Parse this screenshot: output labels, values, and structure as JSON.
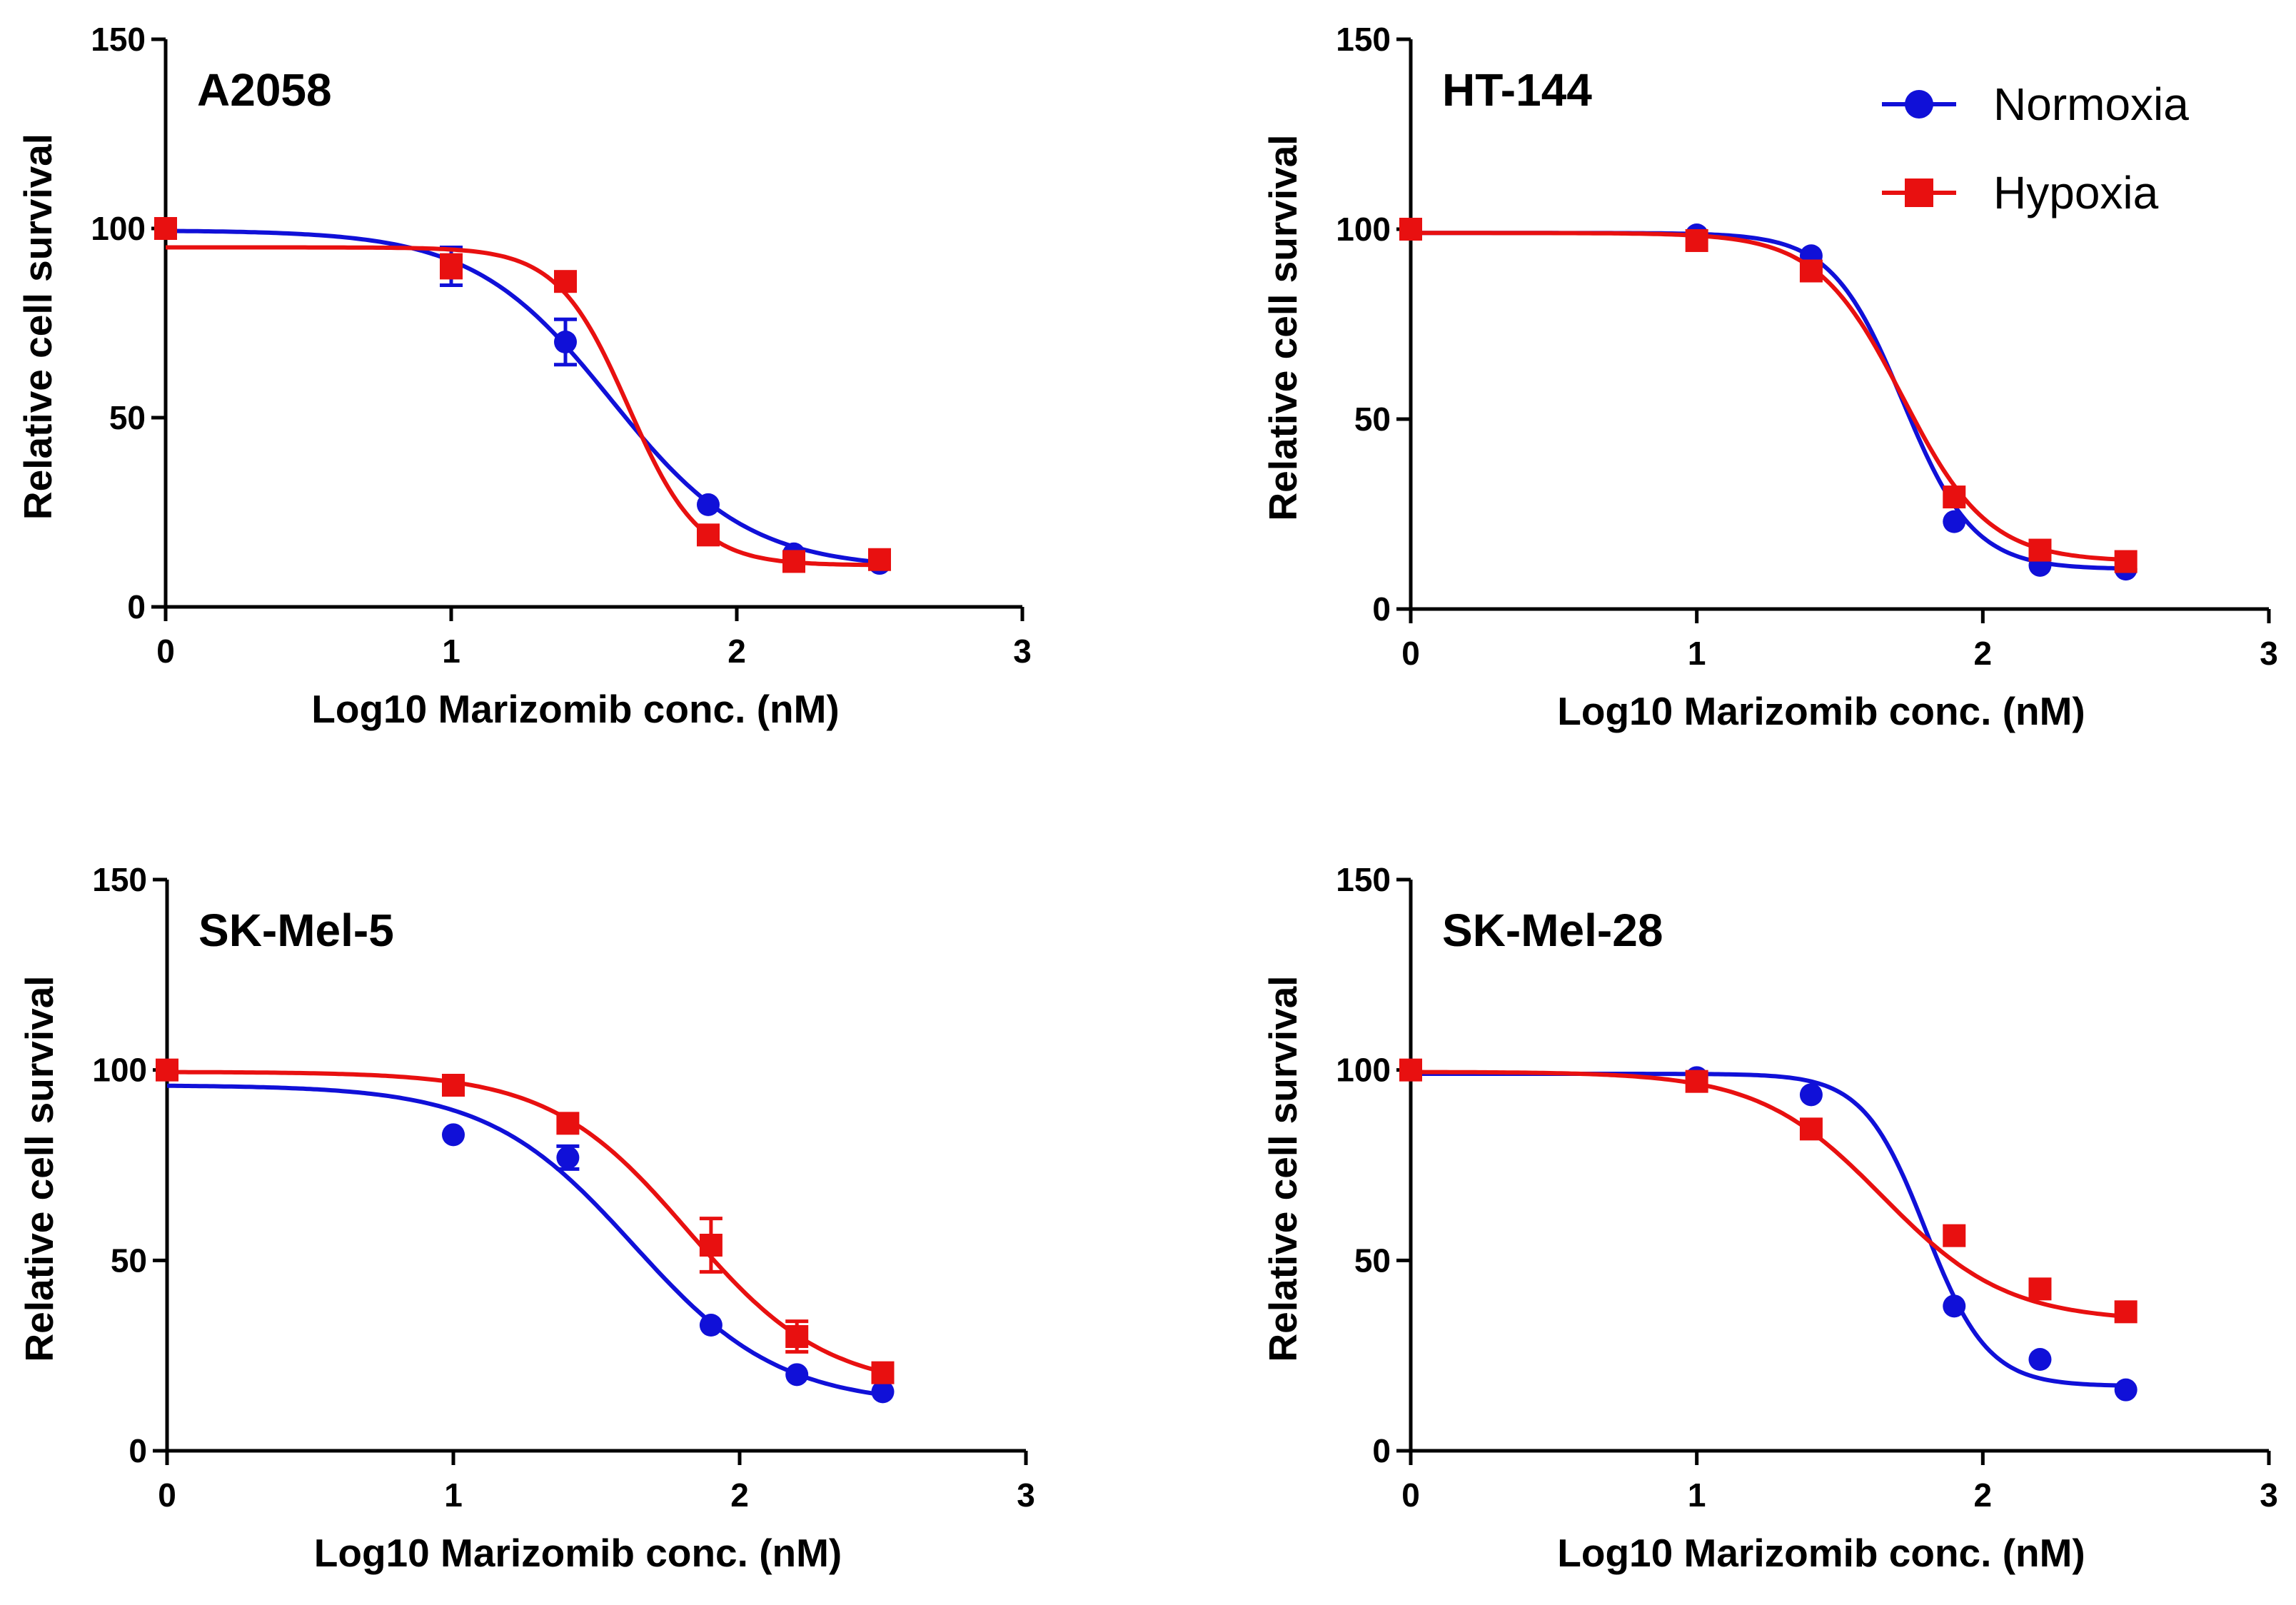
{
  "colors": {
    "normoxia": "#1010d8",
    "hypoxia": "#e81010"
  },
  "legend": {
    "entries": [
      {
        "label": "Normoxia",
        "color": "#1010d8",
        "marker": "circle"
      },
      {
        "label": "Hypoxia",
        "color": "#e81010",
        "marker": "square"
      }
    ],
    "placement": "top-right of HT-144 panel"
  },
  "chart_data": [
    {
      "type": "line",
      "title": "A2058",
      "xlabel": "Log10 Marizomib conc. (nM)",
      "ylabel": "Relative cell survival",
      "xlim": [
        0,
        3
      ],
      "ylim": [
        0,
        150
      ],
      "x_ticks": [
        "0",
        "1",
        "2",
        "3"
      ],
      "y_ticks": [
        "0",
        "50",
        "100",
        "150"
      ],
      "grid": false,
      "x": [
        0,
        1,
        1.4,
        1.9,
        2.2,
        2.5
      ],
      "series": [
        {
          "name": "Normoxia",
          "marker": "circle",
          "values": [
            100,
            90,
            70,
            27,
            14,
            11.5
          ],
          "errors": [
            0,
            5,
            6,
            0,
            0,
            0
          ],
          "fit": {
            "bottom": 10,
            "top": 99.5,
            "logec50": 1.56,
            "hill": 1.8
          }
        },
        {
          "name": "Hypoxia",
          "marker": "square",
          "values": [
            100,
            90,
            86,
            19,
            12,
            12.5
          ],
          "errors": [
            0,
            3,
            0,
            0,
            0,
            0
          ],
          "fit": {
            "bottom": 11,
            "top": 95,
            "logec50": 1.62,
            "hill": 3.5
          }
        }
      ]
    },
    {
      "type": "line",
      "title": "HT-144",
      "xlabel": "Log10 Marizomib conc. (nM)",
      "ylabel": "Relative cell survival",
      "xlim": [
        0,
        3
      ],
      "ylim": [
        0,
        150
      ],
      "x_ticks": [
        "0",
        "1",
        "2",
        "3"
      ],
      "y_ticks": [
        "0",
        "50",
        "100",
        "150"
      ],
      "grid": false,
      "x": [
        0,
        1,
        1.4,
        1.9,
        2.2,
        2.5
      ],
      "series": [
        {
          "name": "Normoxia",
          "marker": "circle",
          "values": [
            100,
            98.5,
            93,
            23,
            11.5,
            10.5
          ],
          "errors": [
            0,
            0,
            0,
            0,
            0,
            0
          ],
          "fit": {
            "bottom": 10.5,
            "top": 99,
            "logec50": 1.72,
            "hill": 3.5
          }
        },
        {
          "name": "Hypoxia",
          "marker": "square",
          "values": [
            100,
            97,
            89,
            29.5,
            15.5,
            12.5
          ],
          "errors": [
            0,
            0,
            0,
            0,
            0,
            0
          ],
          "fit": {
            "bottom": 12.5,
            "top": 99,
            "logec50": 1.72,
            "hill": 2.9
          }
        }
      ]
    },
    {
      "type": "line",
      "title": "SK-Mel-5",
      "xlabel": "Log10 Marizomib conc. (nM)",
      "ylabel": "Relative cell survival",
      "xlim": [
        0,
        3
      ],
      "ylim": [
        0,
        150
      ],
      "x_ticks": [
        "0",
        "1",
        "2",
        "3"
      ],
      "y_ticks": [
        "0",
        "50",
        "100",
        "150"
      ],
      "grid": false,
      "x": [
        0,
        1,
        1.4,
        1.9,
        2.2,
        2.5
      ],
      "series": [
        {
          "name": "Normoxia",
          "marker": "circle",
          "values": [
            100,
            83,
            77,
            33,
            20,
            15.5
          ],
          "errors": [
            0,
            0,
            3,
            0,
            0,
            0
          ],
          "fit": {
            "bottom": 12,
            "top": 96,
            "logec50": 1.63,
            "hill": 1.7
          }
        },
        {
          "name": "Hypoxia",
          "marker": "square",
          "values": [
            100,
            96,
            86,
            54,
            30,
            20.5
          ],
          "errors": [
            0,
            0,
            0,
            7,
            4,
            0
          ],
          "fit": {
            "bottom": 16,
            "top": 99.5,
            "logec50": 1.82,
            "hill": 1.8
          }
        }
      ]
    },
    {
      "type": "line",
      "title": "SK-Mel-28",
      "xlabel": "Log10 Marizomib conc. (nM)",
      "ylabel": "Relative cell survival",
      "xlim": [
        0,
        3
      ],
      "ylim": [
        0,
        150
      ],
      "x_ticks": [
        "0",
        "1",
        "2",
        "3"
      ],
      "y_ticks": [
        "0",
        "50",
        "100",
        "150"
      ],
      "grid": false,
      "x": [
        0,
        1,
        1.4,
        1.9,
        2.2,
        2.5
      ],
      "series": [
        {
          "name": "Normoxia",
          "marker": "circle",
          "values": [
            100,
            98,
            93.5,
            38,
            24,
            16
          ],
          "errors": [
            0,
            0,
            0,
            0,
            0,
            0
          ],
          "fit": {
            "bottom": 17,
            "top": 99,
            "logec50": 1.8,
            "hill": 4.0
          }
        },
        {
          "name": "Hypoxia",
          "marker": "square",
          "values": [
            100,
            97,
            84.5,
            56.5,
            42.5,
            36.5
          ],
          "errors": [
            0,
            0,
            0,
            0,
            0,
            0
          ],
          "fit": {
            "bottom": 34,
            "top": 99.5,
            "logec50": 1.65,
            "hill": 2.0
          }
        }
      ]
    }
  ]
}
